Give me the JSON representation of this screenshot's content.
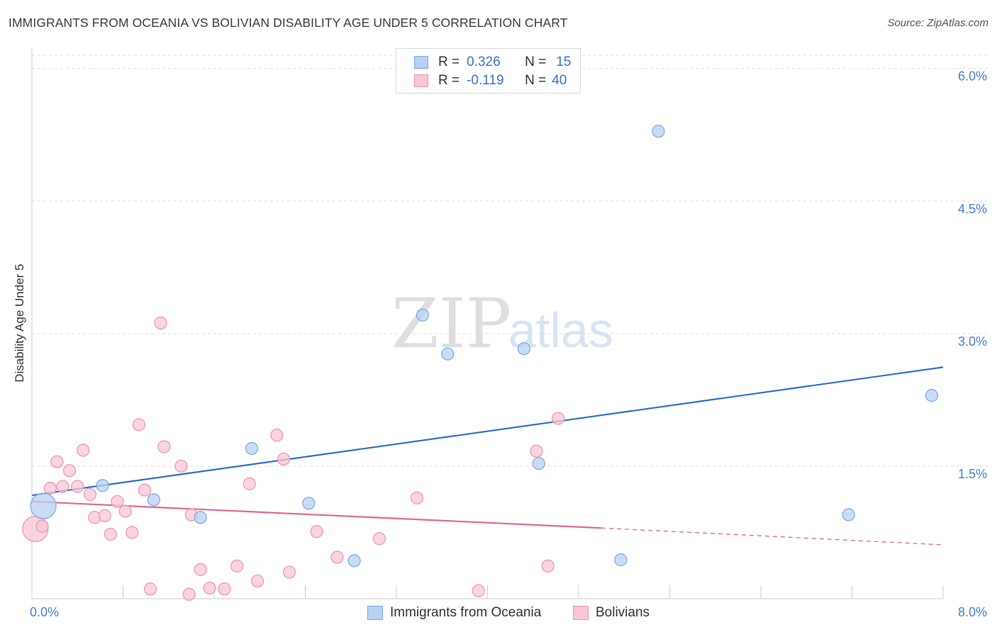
{
  "title": "IMMIGRANTS FROM OCEANIA VS BOLIVIAN DISABILITY AGE UNDER 5 CORRELATION CHART",
  "source": "Source: ZipAtlas.com",
  "watermark": {
    "part1": "ZIP",
    "part2": "atlas"
  },
  "legend": {
    "series1": {
      "r_label": "R =",
      "r_value": "0.326",
      "n_label": "N =",
      "n_value": "15"
    },
    "series2": {
      "r_label": "R =",
      "r_value": "-0.119",
      "n_label": "N =",
      "n_value": "40"
    }
  },
  "bottom_legend": {
    "series1": "Immigrants from Oceania",
    "series2": "Bolivians"
  },
  "colors": {
    "blue_fill": "#b8d0f2",
    "blue_stroke": "#7aa6e2",
    "blue_line": "#2f6fd0",
    "pink_fill": "#f8c6d4",
    "pink_stroke": "#eb94b0",
    "pink_line": "#e2689a",
    "grid": "#dddddd",
    "axis_text": "#4a7fd4"
  },
  "chart_data": {
    "type": "scatter",
    "title": "IMMIGRANTS FROM OCEANIA VS BOLIVIAN DISABILITY AGE UNDER 5 CORRELATION CHART",
    "xlabel": "",
    "ylabel": "Disability Age Under 5",
    "xlim": [
      0,
      8
    ],
    "ylim": [
      0,
      6.15
    ],
    "x_tick_labels": [
      "0.0%",
      "8.0%"
    ],
    "y_ticks": [
      1.5,
      3.0,
      4.5,
      6.0
    ],
    "y_tick_labels": [
      "1.5%",
      "3.0%",
      "4.5%",
      "6.0%"
    ],
    "series": [
      {
        "name": "Immigrants from Oceania",
        "color": "#b8d0f2",
        "points": [
          {
            "x": 0.1,
            "y": 1.05,
            "big": true
          },
          {
            "x": 0.62,
            "y": 1.28
          },
          {
            "x": 1.07,
            "y": 1.12
          },
          {
            "x": 1.48,
            "y": 0.92
          },
          {
            "x": 1.93,
            "y": 1.7
          },
          {
            "x": 2.43,
            "y": 1.08
          },
          {
            "x": 2.83,
            "y": 0.43
          },
          {
            "x": 3.43,
            "y": 3.21
          },
          {
            "x": 3.65,
            "y": 2.77
          },
          {
            "x": 4.32,
            "y": 2.83
          },
          {
            "x": 4.45,
            "y": 1.53
          },
          {
            "x": 5.17,
            "y": 0.44
          },
          {
            "x": 5.5,
            "y": 5.29
          },
          {
            "x": 7.17,
            "y": 0.95
          },
          {
            "x": 7.9,
            "y": 2.3
          }
        ],
        "trend": {
          "x0": 0.0,
          "y0": 1.17,
          "x1": 8.0,
          "y1": 2.62
        }
      },
      {
        "name": "Bolivians",
        "color": "#f8c6d4",
        "points": [
          {
            "x": 0.03,
            "y": 0.79,
            "big": true
          },
          {
            "x": 0.09,
            "y": 0.82
          },
          {
            "x": 0.16,
            "y": 1.25
          },
          {
            "x": 0.22,
            "y": 1.55
          },
          {
            "x": 0.27,
            "y": 1.27
          },
          {
            "x": 0.33,
            "y": 1.45
          },
          {
            "x": 0.4,
            "y": 1.27
          },
          {
            "x": 0.45,
            "y": 1.68
          },
          {
            "x": 0.51,
            "y": 1.18
          },
          {
            "x": 0.55,
            "y": 0.92
          },
          {
            "x": 0.64,
            "y": 0.94
          },
          {
            "x": 0.69,
            "y": 0.73
          },
          {
            "x": 0.75,
            "y": 1.1
          },
          {
            "x": 0.82,
            "y": 0.99
          },
          {
            "x": 0.88,
            "y": 0.75
          },
          {
            "x": 0.94,
            "y": 1.97
          },
          {
            "x": 0.99,
            "y": 1.23
          },
          {
            "x": 1.04,
            "y": 0.11
          },
          {
            "x": 1.13,
            "y": 3.12
          },
          {
            "x": 1.16,
            "y": 1.72
          },
          {
            "x": 1.31,
            "y": 1.5
          },
          {
            "x": 1.38,
            "y": 0.05
          },
          {
            "x": 1.4,
            "y": 0.95
          },
          {
            "x": 1.48,
            "y": 0.33
          },
          {
            "x": 1.56,
            "y": 0.12
          },
          {
            "x": 1.69,
            "y": 0.11
          },
          {
            "x": 1.8,
            "y": 0.37
          },
          {
            "x": 1.91,
            "y": 1.3
          },
          {
            "x": 1.98,
            "y": 0.2
          },
          {
            "x": 2.15,
            "y": 1.85
          },
          {
            "x": 2.21,
            "y": 1.58
          },
          {
            "x": 2.26,
            "y": 0.3
          },
          {
            "x": 2.5,
            "y": 0.76
          },
          {
            "x": 2.68,
            "y": 0.47
          },
          {
            "x": 3.05,
            "y": 0.68
          },
          {
            "x": 3.38,
            "y": 1.14
          },
          {
            "x": 3.92,
            "y": 0.09
          },
          {
            "x": 4.43,
            "y": 1.67
          },
          {
            "x": 4.53,
            "y": 0.37
          },
          {
            "x": 4.62,
            "y": 2.04
          }
        ],
        "trend": {
          "x0": 0.0,
          "y0": 1.1,
          "x1": 5.0,
          "y1": 0.8,
          "dash_x1": 8.0,
          "dash_y1": 0.61
        }
      }
    ]
  }
}
